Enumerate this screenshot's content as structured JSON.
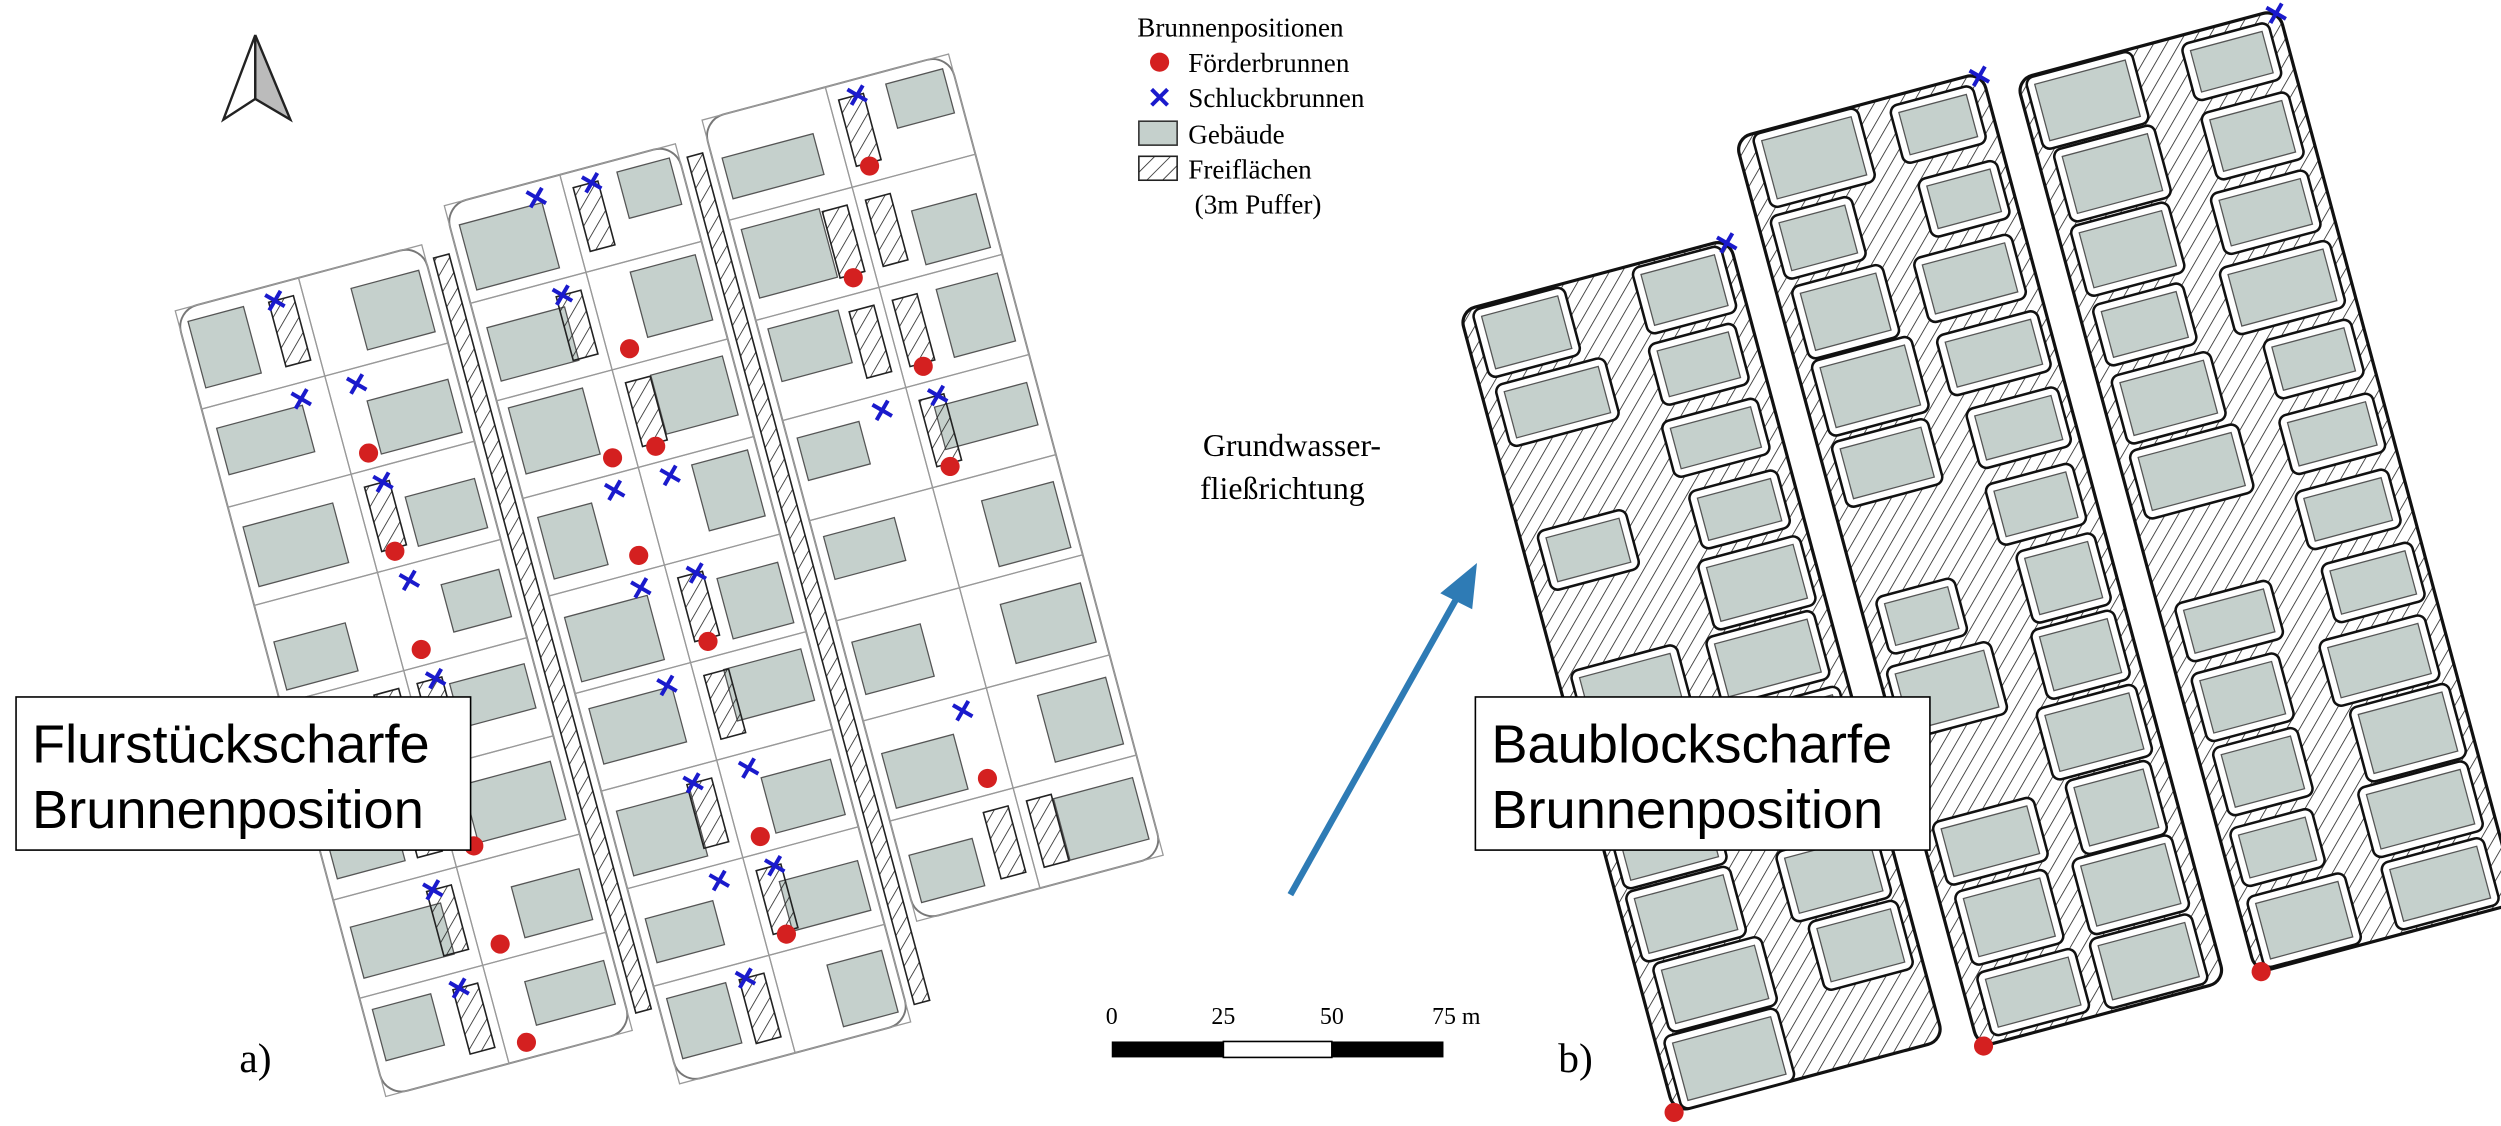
{
  "legend": {
    "title": "Brunnenpositionen",
    "items": [
      "Förderbrunnen",
      "Schluckbrunnen",
      "Gebäude",
      "Freiflächen",
      "(3m Puffer)"
    ]
  },
  "flow_label": [
    "Grundwasser-",
    "fließrichtung"
  ],
  "scale_bar": {
    "labels": [
      "0",
      "25",
      "50",
      "75 m"
    ]
  },
  "panels": [
    {
      "tag": "a)",
      "caption": [
        "Flurstückscharfe",
        "Brunnenposition"
      ]
    },
    {
      "tag": "b)",
      "caption": [
        "Baublockscharfe",
        "Brunnenposition"
      ]
    }
  ]
}
